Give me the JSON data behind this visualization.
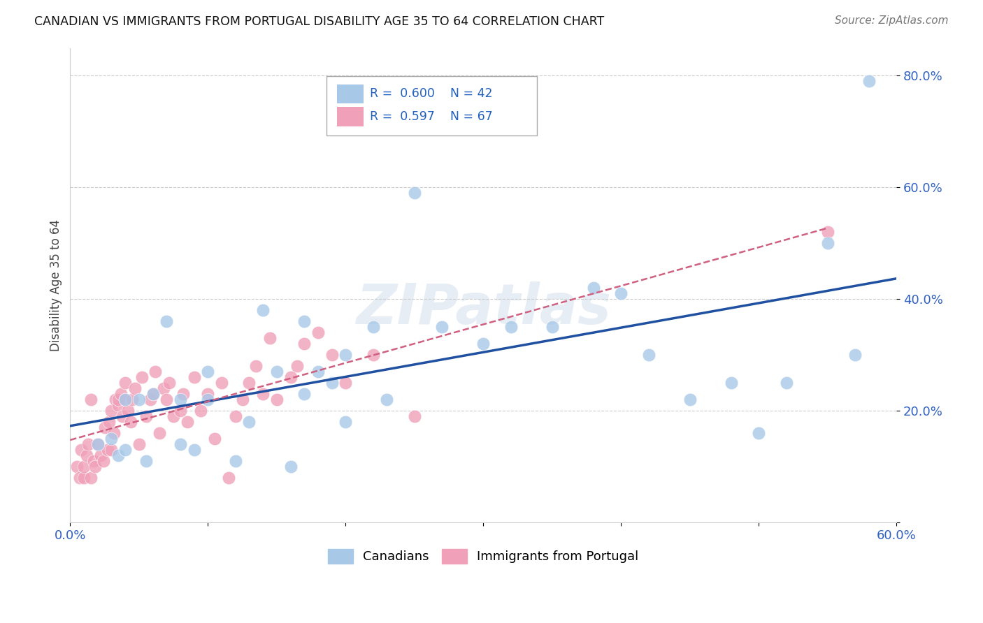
{
  "title": "CANADIAN VS IMMIGRANTS FROM PORTUGAL DISABILITY AGE 35 TO 64 CORRELATION CHART",
  "source": "Source: ZipAtlas.com",
  "ylabel": "Disability Age 35 to 64",
  "xlabel": "",
  "xlim": [
    0.0,
    0.6
  ],
  "ylim": [
    0.0,
    0.85
  ],
  "xtick_vals": [
    0.0,
    0.1,
    0.2,
    0.3,
    0.4,
    0.5,
    0.6
  ],
  "xtick_labels": [
    "0.0%",
    "",
    "",
    "",
    "",
    "",
    "60.0%"
  ],
  "ytick_vals": [
    0.0,
    0.2,
    0.4,
    0.6,
    0.8
  ],
  "ytick_labels": [
    "",
    "20.0%",
    "40.0%",
    "60.0%",
    "80.0%"
  ],
  "legend_r1": "R = 0.600",
  "legend_n1": "N = 42",
  "legend_r2": "R = 0.597",
  "legend_n2": "N = 67",
  "canadian_color": "#a8c8e8",
  "portugal_color": "#f0a0b8",
  "line_canadian_color": "#2050a0",
  "line_portugal_color": "#d06080",
  "watermark": "ZIPatlas",
  "canadians_x": [
    0.02,
    0.03,
    0.035,
    0.04,
    0.05,
    0.055,
    0.06,
    0.07,
    0.08,
    0.09,
    0.1,
    0.12,
    0.13,
    0.15,
    0.16,
    0.17,
    0.18,
    0.19,
    0.2,
    0.22,
    0.23,
    0.25,
    0.27,
    0.3,
    0.32,
    0.35,
    0.38,
    0.4,
    0.42,
    0.45,
    0.48,
    0.5,
    0.52,
    0.55,
    0.57,
    0.58,
    0.04,
    0.08,
    0.1,
    0.14,
    0.17,
    0.2
  ],
  "canadians_y": [
    0.14,
    0.15,
    0.12,
    0.22,
    0.22,
    0.11,
    0.23,
    0.36,
    0.14,
    0.13,
    0.27,
    0.11,
    0.18,
    0.27,
    0.1,
    0.36,
    0.27,
    0.25,
    0.18,
    0.35,
    0.22,
    0.59,
    0.35,
    0.32,
    0.35,
    0.35,
    0.42,
    0.41,
    0.3,
    0.22,
    0.25,
    0.16,
    0.25,
    0.5,
    0.3,
    0.79,
    0.13,
    0.22,
    0.22,
    0.38,
    0.23,
    0.3
  ],
  "portugal_x": [
    0.005,
    0.007,
    0.008,
    0.01,
    0.01,
    0.012,
    0.013,
    0.015,
    0.015,
    0.017,
    0.018,
    0.02,
    0.022,
    0.024,
    0.025,
    0.027,
    0.028,
    0.03,
    0.03,
    0.032,
    0.033,
    0.035,
    0.035,
    0.037,
    0.038,
    0.04,
    0.04,
    0.042,
    0.044,
    0.045,
    0.047,
    0.05,
    0.052,
    0.055,
    0.058,
    0.06,
    0.062,
    0.065,
    0.068,
    0.07,
    0.072,
    0.075,
    0.08,
    0.082,
    0.085,
    0.09,
    0.095,
    0.1,
    0.105,
    0.11,
    0.115,
    0.12,
    0.125,
    0.13,
    0.135,
    0.14,
    0.145,
    0.15,
    0.16,
    0.165,
    0.17,
    0.18,
    0.19,
    0.2,
    0.22,
    0.25,
    0.55
  ],
  "portugal_y": [
    0.1,
    0.08,
    0.13,
    0.08,
    0.1,
    0.12,
    0.14,
    0.08,
    0.22,
    0.11,
    0.1,
    0.14,
    0.12,
    0.11,
    0.17,
    0.13,
    0.18,
    0.13,
    0.2,
    0.16,
    0.22,
    0.21,
    0.22,
    0.23,
    0.19,
    0.22,
    0.25,
    0.2,
    0.18,
    0.22,
    0.24,
    0.14,
    0.26,
    0.19,
    0.22,
    0.23,
    0.27,
    0.16,
    0.24,
    0.22,
    0.25,
    0.19,
    0.2,
    0.23,
    0.18,
    0.26,
    0.2,
    0.23,
    0.15,
    0.25,
    0.08,
    0.19,
    0.22,
    0.25,
    0.28,
    0.23,
    0.33,
    0.22,
    0.26,
    0.28,
    0.32,
    0.34,
    0.3,
    0.25,
    0.3,
    0.19,
    0.52
  ],
  "can_line_x": [
    0.02,
    0.58
  ],
  "can_line_y": [
    0.1,
    0.52
  ],
  "port_line_x": [
    0.005,
    0.55
  ],
  "port_line_y": [
    0.09,
    0.52
  ]
}
